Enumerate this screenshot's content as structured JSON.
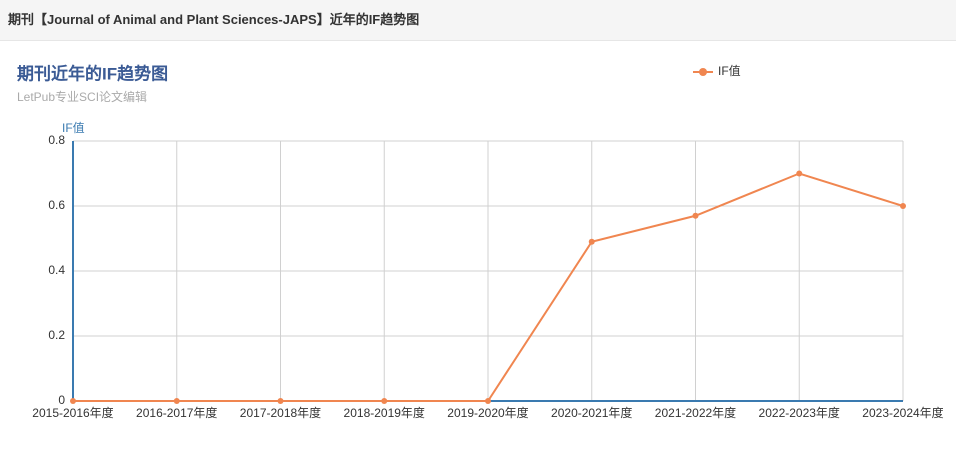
{
  "header": {
    "title": "期刊【Journal of Animal and Plant Sciences-JAPS】近年的IF趋势图"
  },
  "chart_data": {
    "type": "line",
    "title": "期刊近年的IF趋势图",
    "subtitle": "LetPub专业SCI论文编辑",
    "y_label": "IF值",
    "categories": [
      "2015-2016年度",
      "2016-2017年度",
      "2017-2018年度",
      "2018-2019年度",
      "2019-2020年度",
      "2020-2021年度",
      "2021-2022年度",
      "2022-2023年度",
      "2023-2024年度"
    ],
    "series": [
      {
        "name": "IF值",
        "color": "#f08650",
        "values": [
          0,
          0,
          0,
          0,
          0,
          0.49,
          0.57,
          0.7,
          0.6
        ]
      }
    ],
    "ylim": [
      0,
      0.8
    ],
    "yticks": [
      0,
      0.2,
      0.4,
      0.6,
      0.8
    ],
    "grid": true,
    "legend": "top-right"
  }
}
